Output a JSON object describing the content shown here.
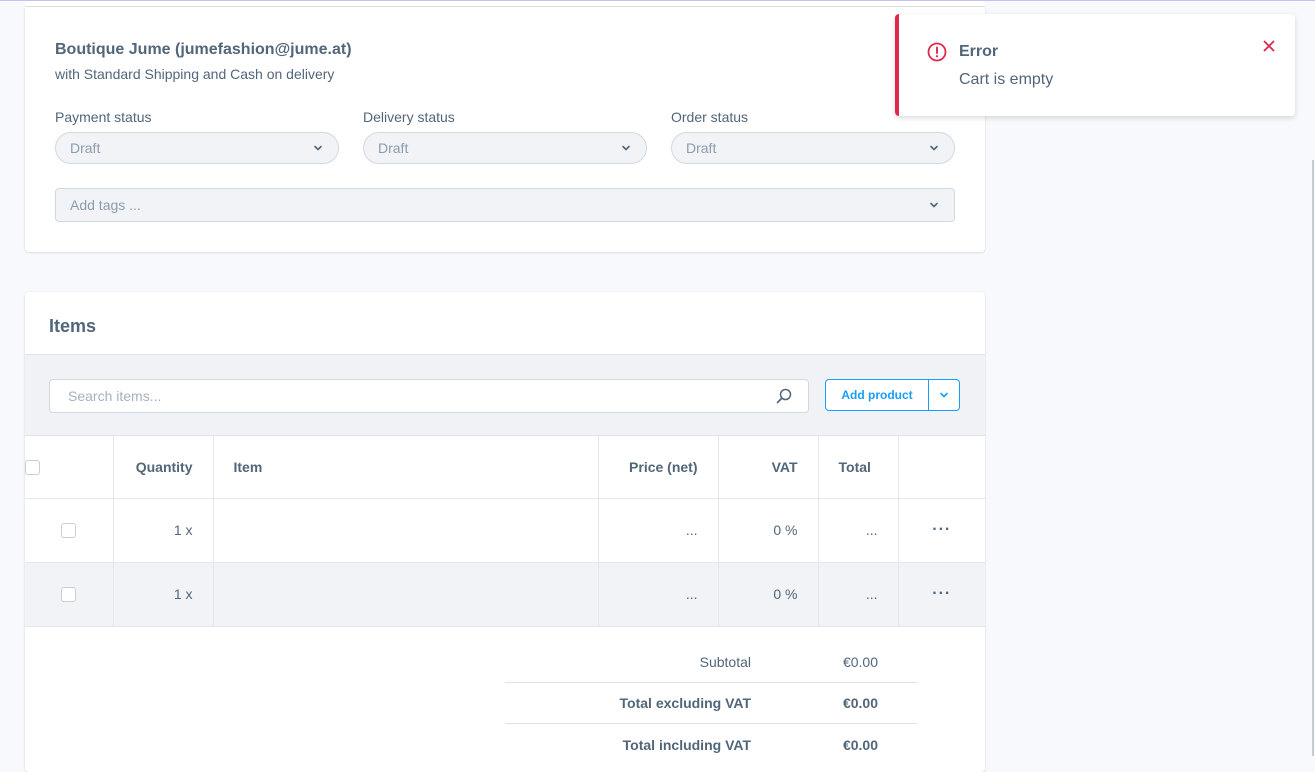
{
  "summary": {
    "customer": "Boutique Jume (jumefashion@jume.at)",
    "shipping": "with Standard Shipping and Cash on delivery",
    "payment_status_label": "Payment status",
    "payment_status_value": "Draft",
    "delivery_status_label": "Delivery status",
    "delivery_status_value": "Draft",
    "order_status_label": "Order status",
    "order_status_value": "Draft",
    "tags_placeholder": "Add tags ..."
  },
  "items": {
    "title": "Items",
    "search_placeholder": "Search items...",
    "add_product_label": "Add product",
    "columns": {
      "quantity": "Quantity",
      "item": "Item",
      "price_net": "Price (net)",
      "vat": "VAT",
      "total": "Total"
    },
    "rows": [
      {
        "quantity": "1 x",
        "item": "",
        "price": "...",
        "vat": "0 %",
        "total": "...",
        "actions": "···"
      },
      {
        "quantity": "1 x",
        "item": "",
        "price": "...",
        "vat": "0 %",
        "total": "...",
        "actions": "···"
      }
    ]
  },
  "totals": {
    "subtotal_label": "Subtotal",
    "subtotal_value": "€0.00",
    "excl_vat_label": "Total excluding VAT",
    "excl_vat_value": "€0.00",
    "incl_vat_label": "Total including VAT",
    "incl_vat_value": "€0.00"
  },
  "toast": {
    "title": "Error",
    "message": "Cart is empty"
  },
  "colors": {
    "accent": "#189eff",
    "error": "#de294c",
    "text": "#52667a"
  },
  "icons": [
    "chevron-down-icon",
    "search-icon",
    "error-circle-icon",
    "close-icon",
    "more-icon"
  ]
}
